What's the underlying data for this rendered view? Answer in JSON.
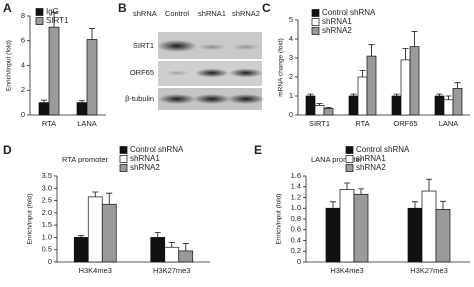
{
  "chart_data": [
    {
      "type": "bar",
      "panel": "A",
      "ylabel": "Enrich/input (fold)",
      "categories": [
        "RTA",
        "LANA"
      ],
      "ylim": [
        0,
        8
      ],
      "yticks": [
        0,
        2,
        4,
        6,
        8
      ],
      "series": [
        {
          "name": "IgG",
          "color": "#111111",
          "values": [
            1,
            1
          ],
          "errors": [
            0.2,
            0.15
          ]
        },
        {
          "name": "SIRT1",
          "color": "#9a9a9a",
          "values": [
            7.1,
            6.1
          ],
          "errors": [
            1.2,
            0.9
          ]
        }
      ]
    },
    {
      "type": "bar",
      "panel": "C",
      "ylabel": "mRNA change (fold)",
      "categories": [
        "SIRT1",
        "RTA",
        "ORF65",
        "LANA"
      ],
      "ylim": [
        0,
        5
      ],
      "yticks": [
        0,
        1,
        2,
        3,
        4,
        5
      ],
      "series": [
        {
          "name": "Control shRNA",
          "color": "#111111",
          "values": [
            1,
            1,
            1,
            1
          ],
          "errors": [
            0.1,
            0.1,
            0.1,
            0.1
          ]
        },
        {
          "name": "shRNA1",
          "color": "#ffffff",
          "values": [
            0.5,
            2,
            2.9,
            0.8
          ],
          "errors": [
            0.1,
            0.35,
            0.6,
            0.2
          ]
        },
        {
          "name": "shRNA2",
          "color": "#9a9a9a",
          "values": [
            0.35,
            3.1,
            3.6,
            1.4
          ],
          "errors": [
            0.05,
            0.6,
            0.8,
            0.3
          ]
        }
      ]
    },
    {
      "type": "bar",
      "panel": "D",
      "title": "RTA  promoter",
      "ylabel": "Enrich/input (fold)",
      "categories": [
        "H3K4me3",
        "H3K27me3"
      ],
      "ylim": [
        0,
        3.5
      ],
      "yticks": [
        0,
        0.5,
        {
          "value": 1,
          "label": "1.0"
        },
        1.5,
        {
          "value": 2,
          "label": "2.0"
        },
        2.5,
        {
          "value": 3,
          "label": "3.0"
        },
        3.5
      ],
      "series": [
        {
          "name": "Control shRNA",
          "color": "#111111",
          "values": [
            1,
            1
          ],
          "errors": [
            0.07,
            0.2
          ]
        },
        {
          "name": "shRNA1",
          "color": "#ffffff",
          "values": [
            2.65,
            0.6
          ],
          "errors": [
            0.2,
            0.2
          ]
        },
        {
          "name": "shRNA2",
          "color": "#9a9a9a",
          "values": [
            2.35,
            0.45
          ],
          "errors": [
            0.45,
            0.3
          ]
        }
      ]
    },
    {
      "type": "bar",
      "panel": "E",
      "title": "LANA  promoter",
      "ylabel": "Enrich/input (fold)",
      "categories": [
        "H3K4me3",
        "H3K27me3"
      ],
      "ylim": [
        0,
        1.6
      ],
      "yticks": [
        0,
        0.2,
        0.4,
        0.6,
        0.8,
        {
          "value": 1,
          "label": "1.0"
        },
        1.2,
        1.4,
        1.6
      ],
      "series": [
        {
          "name": "Control shRNA",
          "color": "#111111",
          "values": [
            1,
            1
          ],
          "errors": [
            0.12,
            0.12
          ]
        },
        {
          "name": "shRNA1",
          "color": "#ffffff",
          "values": [
            1.35,
            1.32
          ],
          "errors": [
            0.12,
            0.22
          ]
        },
        {
          "name": "shRNA2",
          "color": "#9a9a9a",
          "values": [
            1.26,
            0.98
          ],
          "errors": [
            0.1,
            0.15
          ]
        }
      ]
    }
  ],
  "blot": {
    "panel": "B",
    "header": "shRNA",
    "lanes": [
      "Control",
      "shRNA1",
      "shRNA2"
    ],
    "rows": [
      "SIRT1",
      "ORF65",
      "β-tubulin"
    ]
  }
}
